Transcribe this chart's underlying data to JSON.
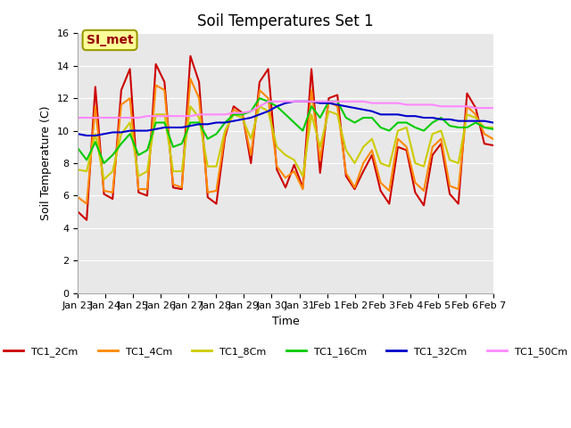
{
  "title": "Soil Temperatures Set 1",
  "xlabel": "Time",
  "ylabel": "Soil Temperature (C)",
  "ylim": [
    0,
    16
  ],
  "yticks": [
    0,
    2,
    4,
    6,
    8,
    10,
    12,
    14,
    16
  ],
  "bg_color": "#e8e8e8",
  "fig_color": "#ffffff",
  "annotation_text": "SI_met",
  "annotation_bg": "#ffff99",
  "annotation_border": "#999900",
  "annotation_text_color": "#990000",
  "colors": {
    "TC1_2Cm": "#cc0000",
    "TC1_4Cm": "#ff8800",
    "TC1_8Cm": "#cccc00",
    "TC1_16Cm": "#00cc00",
    "TC1_32Cm": "#0000cc",
    "TC1_50Cm": "#ff88ff"
  },
  "linewidth": 1.5,
  "x_tick_labels": [
    "Jan 23",
    "Jan 24",
    "Jan 25",
    "Jan 26",
    "Jan 27",
    "Jan 28",
    "Jan 29",
    "Jan 30",
    "Jan 31",
    "Feb 1",
    "Feb 2",
    "Feb 3",
    "Feb 4",
    "Feb 5",
    "Feb 6",
    "Feb 7"
  ],
  "TC1_2Cm": [
    5.0,
    4.5,
    12.7,
    6.1,
    5.8,
    12.5,
    13.8,
    6.2,
    6.0,
    14.1,
    13.0,
    6.5,
    6.4,
    14.6,
    13.0,
    5.9,
    5.5,
    9.6,
    11.5,
    11.1,
    8.0,
    13.0,
    13.8,
    7.6,
    6.5,
    7.9,
    6.5,
    13.8,
    7.4,
    12.0,
    12.2,
    7.2,
    6.4,
    7.5,
    8.5,
    6.3,
    5.5,
    9.0,
    8.8,
    6.2,
    5.4,
    8.5,
    9.2,
    6.1,
    5.5,
    12.3,
    11.4,
    9.2,
    9.1
  ],
  "TC1_4Cm": [
    5.9,
    5.5,
    11.5,
    6.3,
    6.2,
    11.6,
    12.0,
    6.4,
    6.4,
    12.8,
    12.5,
    6.7,
    6.5,
    13.2,
    12.0,
    6.2,
    6.3,
    9.8,
    11.3,
    11.0,
    8.5,
    12.5,
    12.0,
    7.8,
    7.1,
    7.5,
    6.4,
    12.5,
    8.2,
    11.8,
    11.5,
    7.4,
    6.5,
    8.0,
    8.8,
    6.8,
    6.3,
    9.5,
    9.0,
    6.8,
    6.3,
    9.0,
    9.5,
    6.6,
    6.4,
    11.5,
    11.0,
    9.8,
    9.5
  ],
  "TC1_8Cm": [
    7.6,
    7.5,
    9.8,
    7.0,
    7.5,
    9.8,
    10.5,
    7.2,
    7.5,
    11.0,
    11.0,
    7.5,
    7.5,
    11.5,
    10.8,
    7.8,
    7.8,
    10.0,
    11.0,
    10.8,
    9.5,
    11.5,
    11.2,
    9.0,
    8.5,
    8.2,
    7.2,
    11.0,
    9.0,
    11.2,
    11.0,
    8.8,
    8.0,
    9.0,
    9.5,
    8.0,
    7.8,
    10.0,
    10.2,
    8.0,
    7.8,
    9.8,
    10.0,
    8.2,
    8.0,
    11.0,
    10.8,
    10.2,
    10.2
  ],
  "TC1_16Cm": [
    8.9,
    8.2,
    9.3,
    8.0,
    8.5,
    9.2,
    9.8,
    8.5,
    8.8,
    10.5,
    10.5,
    9.0,
    9.2,
    10.5,
    10.5,
    9.5,
    9.8,
    10.5,
    11.0,
    11.0,
    11.2,
    12.0,
    11.8,
    11.5,
    11.0,
    10.5,
    10.0,
    11.5,
    10.8,
    11.8,
    11.8,
    10.8,
    10.5,
    10.8,
    10.8,
    10.2,
    10.0,
    10.5,
    10.5,
    10.2,
    10.0,
    10.5,
    10.8,
    10.3,
    10.2,
    10.2,
    10.5,
    10.2,
    10.1
  ],
  "TC1_32Cm": [
    9.8,
    9.7,
    9.7,
    9.8,
    9.9,
    9.9,
    10.0,
    10.0,
    10.0,
    10.1,
    10.2,
    10.2,
    10.2,
    10.3,
    10.4,
    10.4,
    10.5,
    10.5,
    10.6,
    10.7,
    10.8,
    11.0,
    11.2,
    11.5,
    11.7,
    11.8,
    11.8,
    11.8,
    11.7,
    11.7,
    11.6,
    11.5,
    11.4,
    11.3,
    11.2,
    11.0,
    11.0,
    11.0,
    10.9,
    10.9,
    10.8,
    10.8,
    10.7,
    10.7,
    10.6,
    10.6,
    10.6,
    10.6,
    10.5
  ],
  "TC1_50Cm": [
    10.8,
    10.8,
    10.8,
    10.8,
    10.8,
    10.8,
    10.8,
    10.8,
    10.9,
    10.9,
    10.9,
    10.9,
    10.9,
    10.9,
    11.0,
    11.0,
    11.0,
    11.0,
    11.1,
    11.1,
    11.2,
    11.5,
    11.8,
    11.8,
    11.8,
    11.8,
    11.8,
    11.8,
    11.8,
    11.8,
    11.8,
    11.8,
    11.8,
    11.8,
    11.7,
    11.7,
    11.7,
    11.7,
    11.6,
    11.6,
    11.6,
    11.6,
    11.5,
    11.5,
    11.5,
    11.5,
    11.4,
    11.4,
    11.4
  ]
}
